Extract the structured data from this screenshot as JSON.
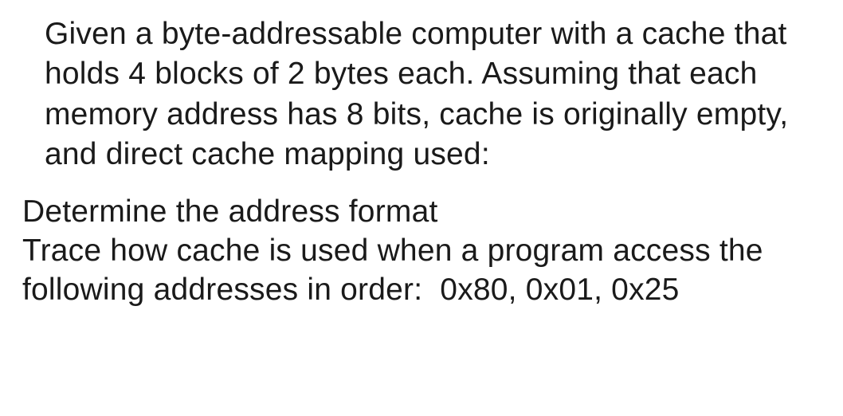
{
  "paragraph1": "Given a byte-addressable computer with a cache that holds 4 blocks of 2 bytes each. Assuming that each memory address has 8 bits, cache is originally empty, and direct cache mapping used:",
  "paragraph2_line1": "Determine the address format",
  "paragraph2_line2": "Trace how cache is used when a program access the following addresses in order:  0x80, 0x01, 0x25"
}
